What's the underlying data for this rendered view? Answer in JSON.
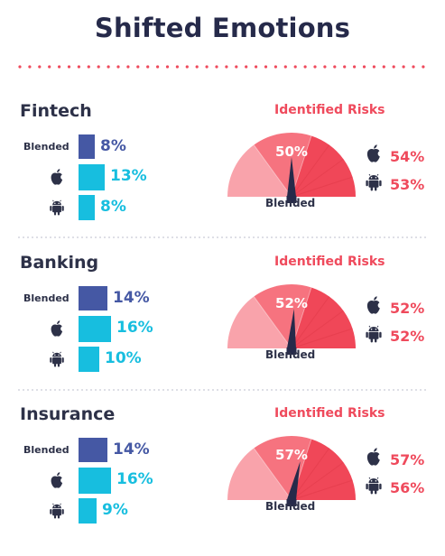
{
  "title": "Shifted Emotions",
  "colors": {
    "blended": "#4558a4",
    "device": "#17bedf",
    "risk_text": "#ef4a5c",
    "gauge_light": "#f9a3ab",
    "gauge_mid": "#f6737f",
    "gauge_dark": "#f04758",
    "needle": "#262a4a"
  },
  "icons": {
    "apple": "apple-icon",
    "android": "android-icon"
  },
  "chart_data": [
    {
      "type": "bar",
      "title": "Fintech",
      "categories": [
        "Blended",
        "iOS",
        "Android"
      ],
      "values": [
        8,
        13,
        8
      ],
      "value_labels": [
        "8%",
        "13%",
        "8%"
      ],
      "row_labels": [
        "Blended",
        "",
        ""
      ],
      "risk": {
        "title": "Identified Risks",
        "gauge_value": 50,
        "gauge_label": "50%",
        "gauge_caption": "Blended",
        "ios_label": "54%",
        "android_label": "53%"
      }
    },
    {
      "type": "bar",
      "title": "Banking",
      "categories": [
        "Blended",
        "iOS",
        "Android"
      ],
      "values": [
        14,
        16,
        10
      ],
      "value_labels": [
        "14%",
        "16%",
        "10%"
      ],
      "row_labels": [
        "Blended",
        "",
        ""
      ],
      "risk": {
        "title": "Identified Risks",
        "gauge_value": 52,
        "gauge_label": "52%",
        "gauge_caption": "Blended",
        "ios_label": "52%",
        "android_label": "52%"
      }
    },
    {
      "type": "bar",
      "title": "Insurance",
      "categories": [
        "Blended",
        "iOS",
        "Android"
      ],
      "values": [
        14,
        16,
        9
      ],
      "value_labels": [
        "14%",
        "16%",
        "9%"
      ],
      "row_labels": [
        "Blended",
        "",
        ""
      ],
      "risk": {
        "title": "Identified Risks",
        "gauge_value": 57,
        "gauge_label": "57%",
        "gauge_caption": "Blended",
        "ios_label": "57%",
        "android_label": "56%"
      }
    }
  ]
}
